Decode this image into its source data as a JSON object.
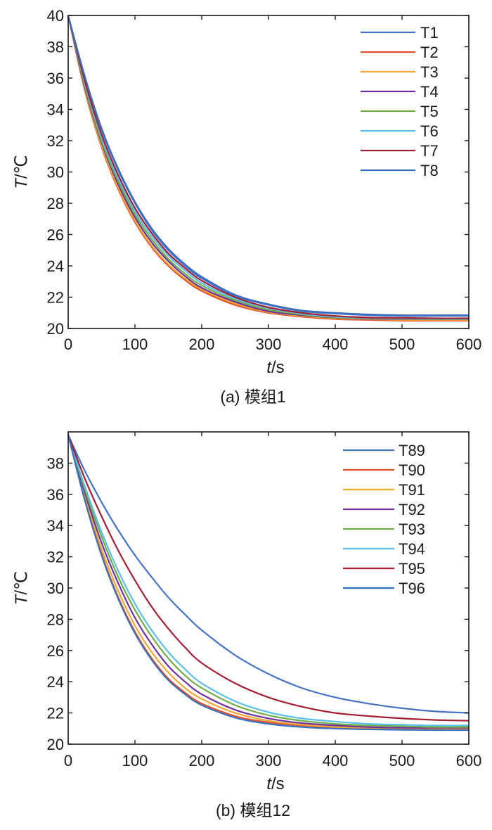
{
  "chart_data": [
    {
      "type": "line",
      "caption": "(a) 模组1",
      "xlabel_var": "t",
      "xlabel_unit": "/s",
      "ylabel_var": "T",
      "ylabel_unit": "/℃",
      "xlim": [
        0,
        600
      ],
      "ylim": [
        20,
        40
      ],
      "xticks": [
        0,
        100,
        200,
        300,
        400,
        500,
        600
      ],
      "yticks": [
        20,
        22,
        24,
        26,
        28,
        30,
        32,
        34,
        36,
        38,
        40
      ],
      "legend_position": "top-right",
      "x": [
        0,
        25,
        50,
        75,
        100,
        125,
        150,
        175,
        200,
        250,
        300,
        350,
        400,
        450,
        500,
        550,
        600
      ],
      "series": [
        {
          "name": "T1",
          "color": "#4472c4",
          "values": [
            40.0,
            36.0,
            32.7,
            30.1,
            28.0,
            26.3,
            25.0,
            24.0,
            23.2,
            22.1,
            21.5,
            21.1,
            20.95,
            20.85,
            20.8,
            20.8,
            20.8
          ]
        },
        {
          "name": "T2",
          "color": "#e0502e",
          "values": [
            40.0,
            35.2,
            31.6,
            28.9,
            26.8,
            25.2,
            24.0,
            23.1,
            22.4,
            21.5,
            21.0,
            20.75,
            20.6,
            20.55,
            20.5,
            20.5,
            20.5
          ]
        },
        {
          "name": "T3",
          "color": "#f0a830",
          "values": [
            40.0,
            35.3,
            31.7,
            29.0,
            26.9,
            25.3,
            24.1,
            23.2,
            22.5,
            21.6,
            21.05,
            20.8,
            20.65,
            20.6,
            20.55,
            20.55,
            20.55
          ]
        },
        {
          "name": "T4",
          "color": "#7030a0",
          "values": [
            40.0,
            35.4,
            31.9,
            29.2,
            27.1,
            25.5,
            24.3,
            23.35,
            22.6,
            21.7,
            21.1,
            20.85,
            20.7,
            20.62,
            20.6,
            20.6,
            20.6
          ]
        },
        {
          "name": "T5",
          "color": "#70ad47",
          "values": [
            40.0,
            35.5,
            32.0,
            29.4,
            27.3,
            25.7,
            24.45,
            23.5,
            22.75,
            21.8,
            21.2,
            20.9,
            20.72,
            20.65,
            20.62,
            20.6,
            20.6
          ]
        },
        {
          "name": "T6",
          "color": "#5bc0e8",
          "values": [
            40.0,
            35.7,
            32.2,
            29.6,
            27.5,
            25.9,
            24.65,
            23.7,
            22.9,
            21.9,
            21.3,
            20.95,
            20.75,
            20.68,
            20.65,
            20.62,
            20.62
          ]
        },
        {
          "name": "T7",
          "color": "#a31f34",
          "values": [
            40.0,
            35.8,
            32.4,
            29.8,
            27.7,
            26.1,
            24.8,
            23.85,
            23.05,
            22.0,
            21.35,
            21.0,
            20.8,
            20.7,
            20.68,
            20.65,
            20.65
          ]
        },
        {
          "name": "T8",
          "color": "#3a6fc0",
          "values": [
            40.0,
            36.1,
            32.8,
            30.2,
            28.1,
            26.4,
            25.1,
            24.1,
            23.3,
            22.15,
            21.55,
            21.15,
            21.0,
            20.9,
            20.85,
            20.85,
            20.85
          ]
        }
      ]
    },
    {
      "type": "line",
      "caption": "(b) 模组12",
      "xlabel_var": "t",
      "xlabel_unit": "/s",
      "ylabel_var": "T",
      "ylabel_unit": "/℃",
      "xlim": [
        0,
        600
      ],
      "ylim": [
        20,
        40
      ],
      "xticks": [
        0,
        100,
        200,
        300,
        400,
        500,
        600
      ],
      "yticks": [
        20,
        22,
        24,
        26,
        28,
        30,
        32,
        34,
        36,
        38
      ],
      "legend_position": "top-right",
      "x": [
        0,
        25,
        50,
        75,
        100,
        125,
        150,
        175,
        200,
        250,
        300,
        350,
        400,
        450,
        500,
        550,
        600
      ],
      "series": [
        {
          "name": "T89",
          "color": "#4472c4",
          "values": [
            39.8,
            37.5,
            35.5,
            33.7,
            32.1,
            30.7,
            29.4,
            28.3,
            27.3,
            25.7,
            24.5,
            23.6,
            23.0,
            22.6,
            22.3,
            22.1,
            22.0
          ]
        },
        {
          "name": "T90",
          "color": "#e0502e",
          "values": [
            39.8,
            35.7,
            32.2,
            29.4,
            27.2,
            25.5,
            24.2,
            23.3,
            22.6,
            21.8,
            21.4,
            21.2,
            21.05,
            21.0,
            20.98,
            20.97,
            20.96
          ]
        },
        {
          "name": "T91",
          "color": "#f0a830",
          "values": [
            39.8,
            35.9,
            32.5,
            29.8,
            27.6,
            25.9,
            24.6,
            23.6,
            22.9,
            22.0,
            21.5,
            21.25,
            21.1,
            21.05,
            21.0,
            21.0,
            21.0
          ]
        },
        {
          "name": "T92",
          "color": "#7030a0",
          "values": [
            39.8,
            36.1,
            32.9,
            30.3,
            28.1,
            26.4,
            25.0,
            24.0,
            23.2,
            22.2,
            21.65,
            21.35,
            21.2,
            21.1,
            21.05,
            21.05,
            21.05
          ]
        },
        {
          "name": "T93",
          "color": "#70ad47",
          "values": [
            39.8,
            36.3,
            33.3,
            30.7,
            28.6,
            26.9,
            25.5,
            24.4,
            23.6,
            22.5,
            21.85,
            21.5,
            21.3,
            21.2,
            21.15,
            21.1,
            21.1
          ]
        },
        {
          "name": "T94",
          "color": "#5bc0e8",
          "values": [
            39.8,
            36.5,
            33.6,
            31.1,
            29.0,
            27.3,
            25.9,
            24.8,
            23.9,
            22.75,
            22.05,
            21.65,
            21.45,
            21.3,
            21.25,
            21.2,
            21.2
          ]
        },
        {
          "name": "T95",
          "color": "#a31f34",
          "values": [
            39.8,
            37.0,
            34.6,
            32.4,
            30.5,
            28.8,
            27.4,
            26.2,
            25.2,
            23.9,
            23.0,
            22.4,
            22.0,
            21.8,
            21.65,
            21.55,
            21.5
          ]
        },
        {
          "name": "T96",
          "color": "#3a6fc0",
          "values": [
            39.8,
            35.6,
            32.1,
            29.3,
            27.1,
            25.4,
            24.1,
            23.2,
            22.5,
            21.7,
            21.3,
            21.1,
            21.0,
            20.95,
            20.92,
            20.9,
            20.9
          ]
        }
      ]
    }
  ]
}
